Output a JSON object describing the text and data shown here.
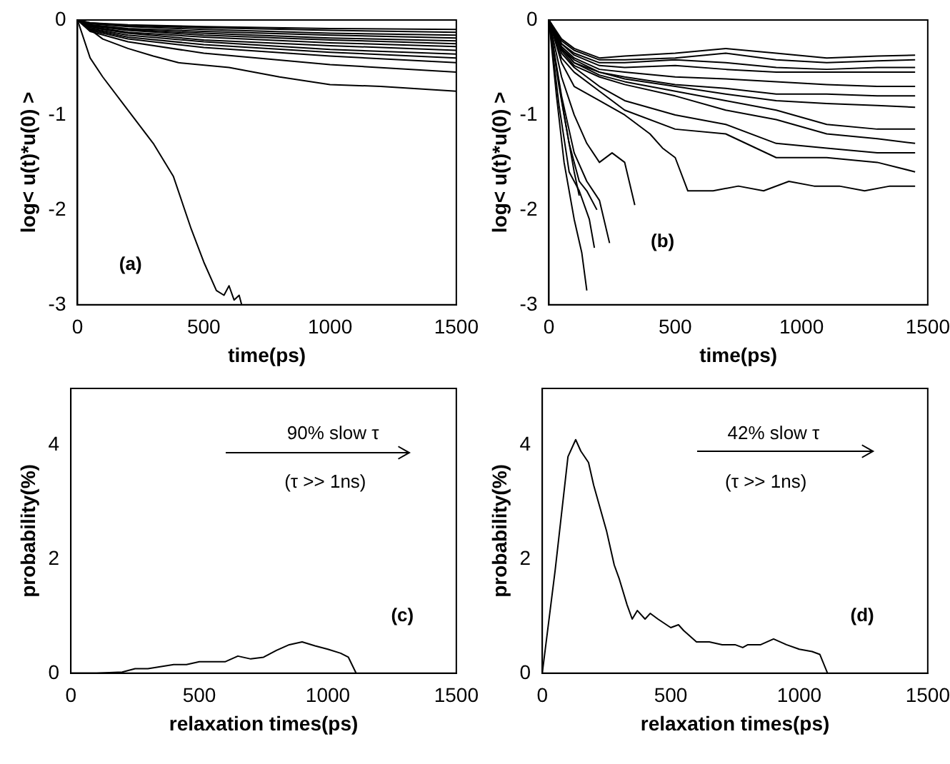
{
  "chart_data": [
    {
      "type": "line",
      "xlabel": "time(ps)",
      "ylabel": "log< u(t)*u(0) >",
      "annotations": [
        "(a)"
      ],
      "color": "#000000",
      "xlim": [
        0,
        1500
      ],
      "xticks": [
        0,
        500,
        1000,
        1500
      ],
      "ylim": [
        -3,
        0
      ],
      "yticks": [
        -3,
        -2,
        -1,
        0
      ],
      "grid": false,
      "legend": false,
      "marker": "none",
      "line_style": "solid",
      "series": [
        {
          "x": [
            0,
            50,
            200,
            500,
            1000,
            1500
          ],
          "values": [
            0,
            -0.03,
            -0.05,
            -0.07,
            -0.09,
            -0.1
          ]
        },
        {
          "x": [
            0,
            50,
            200,
            500,
            1000,
            1500
          ],
          "values": [
            0,
            -0.03,
            -0.06,
            -0.08,
            -0.11,
            -0.13
          ]
        },
        {
          "x": [
            0,
            50,
            200,
            500,
            1000,
            1500
          ],
          "values": [
            0,
            -0.04,
            -0.07,
            -0.1,
            -0.14,
            -0.16
          ]
        },
        {
          "x": [
            0,
            50,
            200,
            500,
            1000,
            1500
          ],
          "values": [
            0,
            -0.05,
            -0.09,
            -0.12,
            -0.16,
            -0.19
          ]
        },
        {
          "x": [
            0,
            50,
            200,
            500,
            1000,
            1500
          ],
          "values": [
            0,
            -0.06,
            -0.1,
            -0.14,
            -0.19,
            -0.22
          ]
        },
        {
          "x": [
            0,
            50,
            200,
            500,
            1000,
            1500
          ],
          "values": [
            0,
            -0.06,
            -0.11,
            -0.16,
            -0.21,
            -0.25
          ]
        },
        {
          "x": [
            0,
            50,
            200,
            500,
            1000,
            1500
          ],
          "values": [
            0,
            -0.07,
            -0.13,
            -0.18,
            -0.24,
            -0.28
          ]
        },
        {
          "x": [
            0,
            50,
            200,
            500,
            1000,
            1500
          ],
          "values": [
            0,
            -0.08,
            -0.14,
            -0.21,
            -0.27,
            -0.32
          ]
        },
        {
          "x": [
            0,
            50,
            200,
            500,
            1000,
            1500
          ],
          "values": [
            0,
            -0.09,
            -0.16,
            -0.23,
            -0.31,
            -0.36
          ]
        },
        {
          "x": [
            0,
            50,
            200,
            500,
            1000,
            1500
          ],
          "values": [
            0,
            -0.1,
            -0.18,
            -0.26,
            -0.34,
            -0.4
          ]
        },
        {
          "x": [
            0,
            50,
            200,
            500,
            1000,
            1500
          ],
          "values": [
            0,
            -0.11,
            -0.2,
            -0.29,
            -0.38,
            -0.45
          ]
        },
        {
          "x": [
            0,
            50,
            200,
            500,
            1000,
            1500
          ],
          "values": [
            0,
            -0.12,
            -0.23,
            -0.35,
            -0.47,
            -0.55
          ]
        },
        {
          "x": [
            0,
            100,
            200,
            300,
            400,
            600,
            800,
            1000,
            1200,
            1500
          ],
          "values": [
            0,
            -0.2,
            -0.3,
            -0.38,
            -0.45,
            -0.5,
            -0.6,
            -0.68,
            -0.7,
            -0.75
          ]
        },
        {
          "x": [
            0,
            50,
            100,
            200,
            300,
            380,
            450,
            500,
            550,
            580,
            600,
            620,
            640,
            650
          ],
          "values": [
            0,
            -0.4,
            -0.6,
            -0.95,
            -1.3,
            -1.65,
            -2.2,
            -2.55,
            -2.85,
            -2.9,
            -2.8,
            -2.95,
            -2.9,
            -3
          ]
        }
      ]
    },
    {
      "type": "line",
      "xlabel": "time(ps)",
      "ylabel": "log< u(t)*u(0) >",
      "annotations": [
        "(b)"
      ],
      "color": "#000000",
      "xlim": [
        0,
        1500
      ],
      "xticks": [
        0,
        500,
        1000,
        1500
      ],
      "ylim": [
        -3,
        0
      ],
      "yticks": [
        -3,
        -2,
        -1,
        0
      ],
      "grid": false,
      "legend": false,
      "marker": "none",
      "line_style": "solid",
      "series": [
        {
          "x": [
            0,
            50,
            100,
            200,
            300,
            500,
            700,
            900,
            1100,
            1300,
            1450
          ],
          "values": [
            0,
            -0.2,
            -0.3,
            -0.4,
            -0.38,
            -0.35,
            -0.3,
            -0.35,
            -0.4,
            -0.38,
            -0.37
          ]
        },
        {
          "x": [
            0,
            50,
            100,
            200,
            300,
            500,
            700,
            900,
            1100,
            1300,
            1450
          ],
          "values": [
            0,
            -0.22,
            -0.32,
            -0.42,
            -0.42,
            -0.4,
            -0.35,
            -0.42,
            -0.45,
            -0.43,
            -0.42
          ]
        },
        {
          "x": [
            0,
            50,
            100,
            200,
            300,
            500,
            700,
            900,
            1100,
            1300,
            1450
          ],
          "values": [
            0,
            -0.25,
            -0.35,
            -0.45,
            -0.45,
            -0.42,
            -0.45,
            -0.5,
            -0.52,
            -0.5,
            -0.5
          ]
        },
        {
          "x": [
            0,
            50,
            100,
            200,
            300,
            500,
            700,
            900,
            1100,
            1300,
            1450
          ],
          "values": [
            0,
            -0.25,
            -0.37,
            -0.48,
            -0.5,
            -0.48,
            -0.52,
            -0.55,
            -0.55,
            -0.55,
            -0.55
          ]
        },
        {
          "x": [
            0,
            50,
            100,
            200,
            300,
            500,
            700,
            900,
            1100,
            1300,
            1450
          ],
          "values": [
            0,
            -0.28,
            -0.4,
            -0.52,
            -0.55,
            -0.6,
            -0.62,
            -0.65,
            -0.68,
            -0.7,
            -0.7
          ]
        },
        {
          "x": [
            0,
            50,
            100,
            200,
            300,
            500,
            700,
            900,
            1100,
            1300,
            1450
          ],
          "values": [
            0,
            -0.3,
            -0.42,
            -0.55,
            -0.6,
            -0.68,
            -0.72,
            -0.78,
            -0.78,
            -0.8,
            -0.8
          ]
        },
        {
          "x": [
            0,
            50,
            100,
            200,
            300,
            500,
            700,
            900,
            1100,
            1300,
            1450
          ],
          "values": [
            0,
            -0.3,
            -0.45,
            -0.55,
            -0.62,
            -0.7,
            -0.78,
            -0.85,
            -0.88,
            -0.9,
            -0.92
          ]
        },
        {
          "x": [
            0,
            50,
            100,
            200,
            300,
            500,
            700,
            900,
            1100,
            1300,
            1450
          ],
          "values": [
            0,
            -0.3,
            -0.45,
            -0.58,
            -0.65,
            -0.75,
            -0.85,
            -0.95,
            -1.1,
            -1.15,
            -1.15
          ]
        },
        {
          "x": [
            0,
            50,
            100,
            200,
            300,
            500,
            700,
            900,
            1100,
            1300,
            1450
          ],
          "values": [
            0,
            -0.32,
            -0.48,
            -0.6,
            -0.68,
            -0.8,
            -0.95,
            -1.05,
            -1.2,
            -1.25,
            -1.3
          ]
        },
        {
          "x": [
            0,
            50,
            100,
            200,
            300,
            500,
            700,
            900,
            1100,
            1300,
            1450
          ],
          "values": [
            0,
            -0.35,
            -0.5,
            -0.7,
            -0.85,
            -1.0,
            -1.1,
            -1.3,
            -1.35,
            -1.4,
            -1.4
          ]
        },
        {
          "x": [
            0,
            50,
            100,
            200,
            300,
            500,
            700,
            900,
            1100,
            1300,
            1450
          ],
          "values": [
            0,
            -0.4,
            -0.55,
            -0.75,
            -0.95,
            -1.15,
            -1.2,
            -1.45,
            -1.45,
            -1.5,
            -1.6
          ]
        },
        {
          "x": [
            0,
            50,
            100,
            200,
            300,
            400,
            450,
            500,
            550,
            650,
            750,
            850,
            950,
            1050,
            1150,
            1250,
            1350,
            1450
          ],
          "values": [
            0,
            -0.45,
            -0.7,
            -0.85,
            -1.0,
            -1.2,
            -1.35,
            -1.45,
            -1.8,
            -1.8,
            -1.75,
            -1.8,
            -1.7,
            -1.75,
            -1.75,
            -1.8,
            -1.75,
            -1.75
          ]
        },
        {
          "x": [
            0,
            50,
            100,
            150,
            200,
            250,
            300,
            340
          ],
          "values": [
            0,
            -0.6,
            -1.0,
            -1.3,
            -1.5,
            -1.4,
            -1.5,
            -1.95
          ]
        },
        {
          "x": [
            0,
            30,
            60,
            100,
            130,
            150
          ],
          "values": [
            0,
            -0.8,
            -1.5,
            -2.1,
            -2.45,
            -2.85
          ]
        },
        {
          "x": [
            0,
            40,
            80,
            120,
            160,
            180
          ],
          "values": [
            0,
            -0.9,
            -1.6,
            -1.8,
            -2.1,
            -2.4
          ]
        },
        {
          "x": [
            0,
            50,
            100,
            150,
            200,
            240
          ],
          "values": [
            0,
            -0.8,
            -1.4,
            -1.7,
            -1.9,
            -2.35
          ]
        },
        {
          "x": [
            0,
            40,
            80,
            120,
            150,
            190
          ],
          "values": [
            0,
            -0.7,
            -1.3,
            -1.7,
            -1.8,
            -2.0
          ]
        },
        {
          "x": [
            0,
            60,
            100,
            120
          ],
          "values": [
            0,
            -1.0,
            -1.6,
            -1.85
          ]
        }
      ]
    },
    {
      "type": "line",
      "xlabel": "relaxation times(ps)",
      "ylabel": "probability(%)",
      "annotations": [
        "90% slow τ",
        "(τ >> 1ns)",
        "(c)"
      ],
      "color": "#000000",
      "xlim": [
        0,
        1500
      ],
      "xticks": [
        0,
        500,
        1000,
        1500
      ],
      "ylim": [
        0,
        5
      ],
      "yticks": [
        0,
        2,
        4
      ],
      "grid": false,
      "legend": false,
      "marker": "none",
      "line_style": "solid",
      "series": [
        {
          "x": [
            0,
            100,
            200,
            250,
            300,
            400,
            450,
            500,
            600,
            650,
            700,
            750,
            800,
            850,
            900,
            950,
            1000,
            1050,
            1080,
            1110
          ],
          "values": [
            0,
            0,
            0.02,
            0.08,
            0.08,
            0.15,
            0.15,
            0.2,
            0.2,
            0.3,
            0.25,
            0.28,
            0.4,
            0.5,
            0.55,
            0.48,
            0.42,
            0.35,
            0.28,
            0
          ]
        }
      ]
    },
    {
      "type": "line",
      "xlabel": "relaxation times(ps)",
      "ylabel": "probability(%)",
      "annotations": [
        "42% slow τ",
        "(τ >> 1ns)",
        "(d)"
      ],
      "color": "#000000",
      "xlim": [
        0,
        1500
      ],
      "xticks": [
        0,
        500,
        1000,
        1500
      ],
      "ylim": [
        0,
        5
      ],
      "yticks": [
        0,
        2,
        4
      ],
      "grid": false,
      "legend": false,
      "marker": "none",
      "line_style": "solid",
      "series": [
        {
          "x": [
            0,
            50,
            100,
            130,
            150,
            180,
            200,
            250,
            280,
            300,
            330,
            350,
            370,
            400,
            420,
            450,
            500,
            530,
            550,
            600,
            650,
            700,
            750,
            780,
            800,
            850,
            900,
            950,
            1000,
            1050,
            1080,
            1110
          ],
          "values": [
            0,
            1.8,
            3.8,
            4.1,
            3.9,
            3.7,
            3.3,
            2.5,
            1.9,
            1.65,
            1.2,
            0.95,
            1.1,
            0.95,
            1.05,
            0.95,
            0.8,
            0.85,
            0.75,
            0.55,
            0.55,
            0.5,
            0.5,
            0.45,
            0.5,
            0.5,
            0.6,
            0.5,
            0.42,
            0.38,
            0.33,
            0
          ]
        }
      ]
    }
  ]
}
